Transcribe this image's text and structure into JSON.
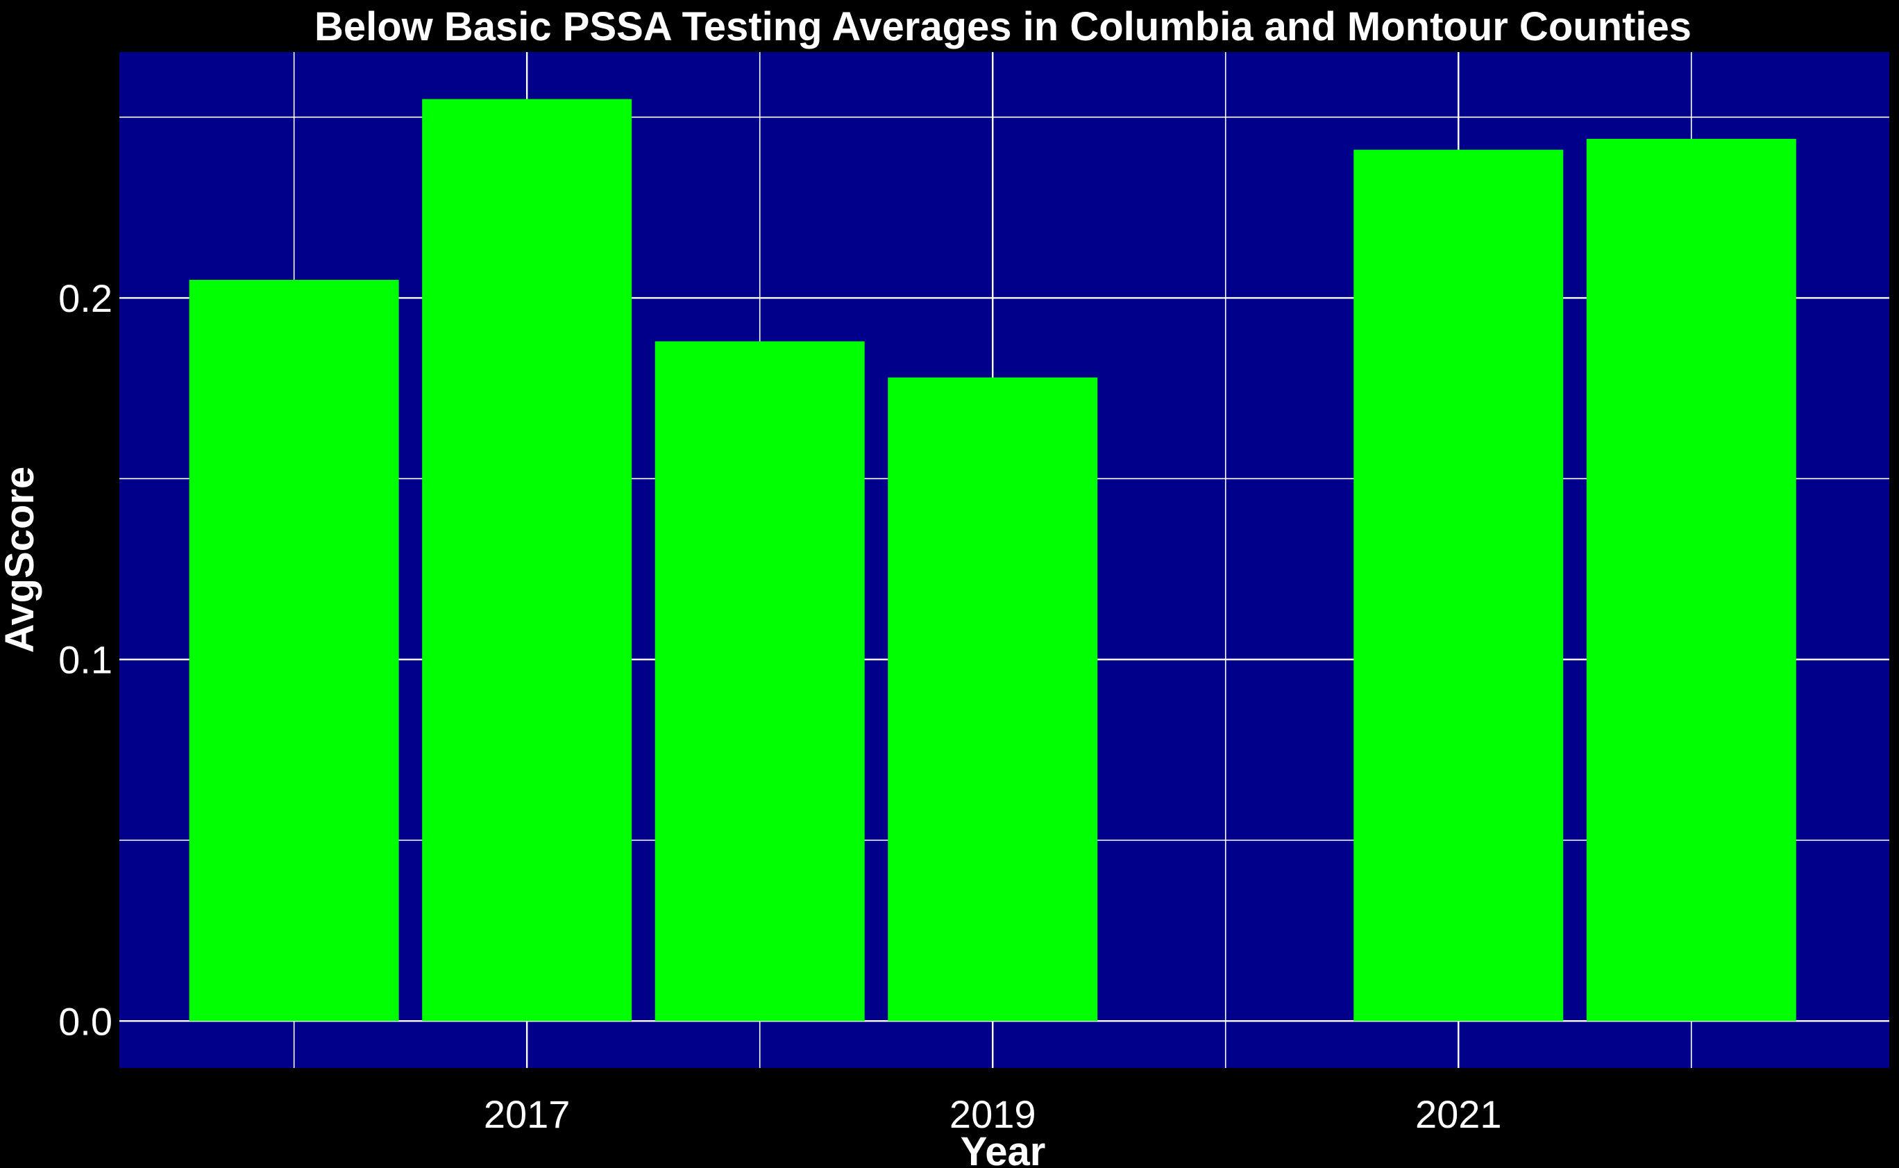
{
  "chart_data": {
    "type": "bar",
    "title": "Below Basic PSSA Testing Averages in Columbia and Montour Counties",
    "xlabel": "Year",
    "ylabel": "AvgScore",
    "x": [
      2016,
      2017,
      2018,
      2019,
      2021,
      2022
    ],
    "values": [
      0.205,
      0.255,
      0.188,
      0.178,
      0.241,
      0.244
    ],
    "x_tick_labels": [
      "2017",
      "2019",
      "2021"
    ],
    "x_tick_values": [
      2017,
      2019,
      2021
    ],
    "y_tick_labels": [
      "0.0",
      "0.1",
      "0.2"
    ],
    "y_tick_values": [
      0.0,
      0.1,
      0.2
    ],
    "xlim": [
      2015.25,
      2022.85
    ],
    "ylim": [
      -0.013,
      0.268
    ],
    "grid": true,
    "colors": {
      "bar": "#00ff00",
      "panel": "#00008b",
      "background": "#000000",
      "grid": "#ffffff",
      "text": "#ffffff"
    }
  }
}
